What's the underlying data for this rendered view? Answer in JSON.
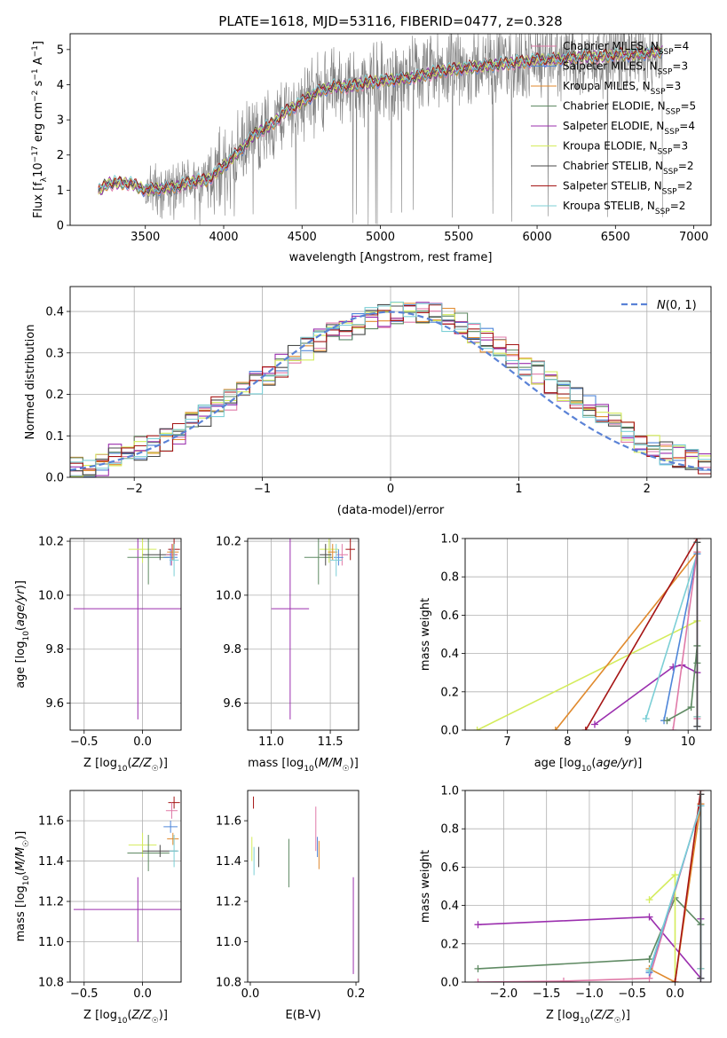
{
  "figure": {
    "title": "PLATE=1618, MJD=53116, FIBERID=0477, z=0.328"
  },
  "colors": {
    "data": "#7f7f7f",
    "chabrier_miles": "#e07aa8",
    "salpeter_miles": "#4f86d9",
    "kroupa_miles": "#e08a2e",
    "chabrier_elodie": "#5f8a63",
    "salpeter_elodie": "#9b2fae",
    "kroupa_elodie": "#d4ec5c",
    "chabrier_stelib": "#4a4a4a",
    "salpeter_stelib": "#a51515",
    "kroupa_stelib": "#7ccfd6",
    "normal": "#5a82d6",
    "grid": "#b0b0b0"
  },
  "chart_data": [
    {
      "id": "spectrum",
      "type": "line",
      "title": "PLATE=1618, MJD=53116, FIBERID=0477, z=0.328",
      "xlabel": "wavelength [Angstrom, rest frame]",
      "ylabel": "Flux [f_λ 10^-17 erg cm^-2 s^-1 A^-1]",
      "xlim": [
        3020,
        7110
      ],
      "ylim": [
        0,
        5.45
      ],
      "xticks": [
        3500,
        4000,
        4500,
        5000,
        5500,
        6000,
        6500,
        7000
      ],
      "yticks": [
        0,
        1,
        2,
        3,
        4,
        5
      ],
      "grid": false,
      "legend_position": "top-right",
      "continuum": [
        [
          3200,
          0.95
        ],
        [
          3260,
          1.2
        ],
        [
          3400,
          1.2
        ],
        [
          3500,
          1.0
        ],
        [
          3600,
          1.05
        ],
        [
          3700,
          1.1
        ],
        [
          3800,
          1.25
        ],
        [
          3900,
          1.3
        ],
        [
          3980,
          1.6
        ],
        [
          4100,
          2.1
        ],
        [
          4200,
          2.6
        ],
        [
          4300,
          2.85
        ],
        [
          4400,
          3.25
        ],
        [
          4500,
          3.5
        ],
        [
          4600,
          3.8
        ],
        [
          4700,
          3.95
        ],
        [
          4800,
          3.95
        ],
        [
          4900,
          4.05
        ],
        [
          5000,
          4.1
        ],
        [
          5100,
          4.15
        ],
        [
          5200,
          4.2
        ],
        [
          5300,
          4.3
        ],
        [
          5400,
          4.4
        ],
        [
          5500,
          4.45
        ],
        [
          5600,
          4.5
        ],
        [
          5700,
          4.55
        ],
        [
          5800,
          4.6
        ],
        [
          5900,
          4.65
        ],
        [
          6000,
          4.7
        ],
        [
          6100,
          4.7
        ],
        [
          6200,
          4.75
        ],
        [
          6300,
          4.8
        ],
        [
          6400,
          4.8
        ],
        [
          6500,
          4.85
        ],
        [
          6600,
          4.85
        ],
        [
          6700,
          4.9
        ],
        [
          6800,
          4.95
        ]
      ],
      "series": [
        {
          "name": "Chabrier MILES, N_SSP=4",
          "color_key": "chabrier_miles"
        },
        {
          "name": "Salpeter MILES, N_SSP=3",
          "color_key": "salpeter_miles"
        },
        {
          "name": "Kroupa MILES, N_SSP=3",
          "color_key": "kroupa_miles"
        },
        {
          "name": "Chabrier ELODIE, N_SSP=5",
          "color_key": "chabrier_elodie"
        },
        {
          "name": "Salpeter ELODIE, N_SSP=4",
          "color_key": "salpeter_elodie"
        },
        {
          "name": "Kroupa ELODIE, N_SSP=3",
          "color_key": "kroupa_elodie"
        },
        {
          "name": "Chabrier STELIB, N_SSP=2",
          "color_key": "chabrier_stelib"
        },
        {
          "name": "Salpeter STELIB, N_SSP=2",
          "color_key": "salpeter_stelib"
        },
        {
          "name": "Kroupa STELIB, N_SSP=2",
          "color_key": "kroupa_stelib"
        }
      ]
    },
    {
      "id": "residuals",
      "type": "line",
      "xlabel": "(data-model)/error",
      "ylabel": "Normed distribution",
      "xlim": [
        -2.5,
        2.5
      ],
      "ylim": [
        0,
        0.46
      ],
      "xticks": [
        -2,
        -1,
        0,
        1,
        2
      ],
      "yticks": [
        0.0,
        0.1,
        0.2,
        0.3,
        0.4
      ],
      "grid": true,
      "legend_position": "top-right",
      "legend": "N(0,1)",
      "bin_edges_start": -2.5,
      "bin_width": 0.1,
      "base_histogram": [
        0.02,
        0.02,
        0.03,
        0.05,
        0.06,
        0.07,
        0.08,
        0.09,
        0.11,
        0.13,
        0.15,
        0.17,
        0.19,
        0.21,
        0.23,
        0.25,
        0.27,
        0.29,
        0.31,
        0.33,
        0.35,
        0.36,
        0.37,
        0.38,
        0.39,
        0.4,
        0.4,
        0.4,
        0.39,
        0.38,
        0.37,
        0.35,
        0.33,
        0.31,
        0.29,
        0.27,
        0.25,
        0.23,
        0.21,
        0.19,
        0.17,
        0.15,
        0.13,
        0.11,
        0.09,
        0.08,
        0.06,
        0.05,
        0.04,
        0.03
      ]
    },
    {
      "id": "age_vs_Z",
      "type": "scatter",
      "xlabel": "Z [log10(Z/Z☉)]",
      "ylabel": "age [log10(age/yr)]",
      "xlim": [
        -0.62,
        0.33
      ],
      "ylim": [
        9.5,
        10.21
      ],
      "xticks": [
        -0.5,
        0.0
      ],
      "yticks": [
        9.6,
        9.8,
        10.0,
        10.2
      ],
      "grid": true,
      "points": [
        {
          "color_key": "salpeter_elodie",
          "x": -0.04,
          "y": 9.95,
          "xerr": 0.55,
          "yerr": 0.41
        },
        {
          "color_key": "kroupa_elodie",
          "x": 0.0,
          "y": 10.17,
          "xerr": 0.12,
          "yerr": 0.05
        },
        {
          "color_key": "chabrier_elodie",
          "x": 0.05,
          "y": 10.14,
          "xerr": 0.18,
          "yerr": 0.1
        },
        {
          "color_key": "chabrier_stelib",
          "x": 0.15,
          "y": 10.15,
          "xerr": 0.15,
          "yerr": 0.02
        },
        {
          "color_key": "salpeter_stelib",
          "x": 0.27,
          "y": 10.17,
          "xerr": 0.05,
          "yerr": 0.04
        },
        {
          "color_key": "chabrier_miles",
          "x": 0.25,
          "y": 10.15,
          "xerr": 0.05,
          "yerr": 0.04
        },
        {
          "color_key": "salpeter_miles",
          "x": 0.24,
          "y": 10.14,
          "xerr": 0.06,
          "yerr": 0.03
        },
        {
          "color_key": "kroupa_miles",
          "x": 0.26,
          "y": 10.16,
          "xerr": 0.05,
          "yerr": 0.03
        },
        {
          "color_key": "kroupa_stelib",
          "x": 0.27,
          "y": 10.13,
          "xerr": 0.04,
          "yerr": 0.06
        }
      ]
    },
    {
      "id": "age_vs_mass",
      "type": "scatter",
      "xlabel": "mass [log10(M/M☉)]",
      "ylabel": "",
      "xlim": [
        10.8,
        11.74
      ],
      "ylim": [
        9.5,
        10.21
      ],
      "xticks": [
        11.0,
        11.5
      ],
      "yticks": [
        9.6,
        9.8,
        10.0,
        10.2
      ],
      "grid": true,
      "points": [
        {
          "color_key": "salpeter_elodie",
          "x": 11.16,
          "y": 9.95,
          "xerr": 0.16,
          "yerr": 0.41
        },
        {
          "color_key": "kroupa_elodie",
          "x": 11.49,
          "y": 10.17,
          "xerr": 0.08,
          "yerr": 0.05
        },
        {
          "color_key": "chabrier_elodie",
          "x": 11.4,
          "y": 10.14,
          "xerr": 0.12,
          "yerr": 0.1
        },
        {
          "color_key": "chabrier_stelib",
          "x": 11.46,
          "y": 10.15,
          "xerr": 0.05,
          "yerr": 0.04
        },
        {
          "color_key": "salpeter_stelib",
          "x": 11.67,
          "y": 10.17,
          "xerr": 0.04,
          "yerr": 0.04
        },
        {
          "color_key": "chabrier_miles",
          "x": 11.6,
          "y": 10.15,
          "xerr": 0.05,
          "yerr": 0.04
        },
        {
          "color_key": "salpeter_miles",
          "x": 11.57,
          "y": 10.14,
          "xerr": 0.04,
          "yerr": 0.03
        },
        {
          "color_key": "kroupa_miles",
          "x": 11.52,
          "y": 10.16,
          "xerr": 0.04,
          "yerr": 0.03
        },
        {
          "color_key": "kroupa_stelib",
          "x": 11.55,
          "y": 10.13,
          "xerr": 0.05,
          "yerr": 0.06
        }
      ]
    },
    {
      "id": "mass_weight_vs_age",
      "type": "line",
      "xlabel": "age [log10(age/yr)]",
      "ylabel": "mass weight",
      "xlim": [
        6.3,
        10.38
      ],
      "ylim": [
        0.0,
        1.0
      ],
      "xticks": [
        7,
        8,
        9,
        10
      ],
      "yticks": [
        0.0,
        0.2,
        0.4,
        0.6,
        0.8,
        1.0
      ],
      "grid": true,
      "series": [
        {
          "color_key": "kroupa_elodie",
          "x": [
            6.5,
            10.15
          ],
          "y": [
            0.0,
            0.57
          ]
        },
        {
          "color_key": "kroupa_miles",
          "x": [
            7.8,
            10.15,
            10.15
          ],
          "y": [
            0.0,
            0.93,
            0.07
          ]
        },
        {
          "color_key": "salpeter_stelib",
          "x": [
            8.3,
            10.15
          ],
          "y": [
            0.0,
            1.0
          ]
        },
        {
          "color_key": "salpeter_elodie",
          "x": [
            8.45,
            9.75,
            9.9,
            10.15
          ],
          "y": [
            0.03,
            0.33,
            0.34,
            0.3
          ]
        },
        {
          "color_key": "kroupa_stelib",
          "x": [
            9.3,
            10.15,
            10.15
          ],
          "y": [
            0.06,
            0.92,
            0.07
          ]
        },
        {
          "color_key": "salpeter_miles",
          "x": [
            9.6,
            10.15,
            10.15
          ],
          "y": [
            0.05,
            0.92,
            0.02
          ]
        },
        {
          "color_key": "chabrier_miles",
          "x": [
            9.75,
            10.15,
            10.15
          ],
          "y": [
            0.0,
            0.93,
            0.06
          ]
        },
        {
          "color_key": "chabrier_elodie",
          "x": [
            9.65,
            10.05,
            10.15,
            10.15
          ],
          "y": [
            0.05,
            0.12,
            0.44,
            0.35
          ]
        },
        {
          "color_key": "chabrier_stelib",
          "x": [
            10.15,
            10.15
          ],
          "y": [
            0.02,
            0.98
          ]
        }
      ]
    },
    {
      "id": "mass_vs_Z",
      "type": "scatter",
      "xlabel": "Z [log10(Z/Z☉)]",
      "ylabel": "mass [log10(M/M☉)]",
      "xlim": [
        -0.62,
        0.33
      ],
      "ylim": [
        10.8,
        11.75
      ],
      "xticks": [
        -0.5,
        0.0
      ],
      "yticks": [
        10.8,
        11.0,
        11.2,
        11.4,
        11.6
      ],
      "grid": true,
      "points": [
        {
          "color_key": "salpeter_elodie",
          "x": -0.04,
          "y": 11.16,
          "xerr": 0.55,
          "yerr": 0.16
        },
        {
          "color_key": "kroupa_elodie",
          "x": 0.0,
          "y": 11.48,
          "xerr": 0.12,
          "yerr": 0.06
        },
        {
          "color_key": "chabrier_elodie",
          "x": 0.05,
          "y": 11.44,
          "xerr": 0.18,
          "yerr": 0.09
        },
        {
          "color_key": "chabrier_stelib",
          "x": 0.15,
          "y": 11.45,
          "xerr": 0.15,
          "yerr": 0.03
        },
        {
          "color_key": "salpeter_stelib",
          "x": 0.27,
          "y": 11.69,
          "xerr": 0.05,
          "yerr": 0.03
        },
        {
          "color_key": "chabrier_miles",
          "x": 0.25,
          "y": 11.65,
          "xerr": 0.05,
          "yerr": 0.04
        },
        {
          "color_key": "salpeter_miles",
          "x": 0.24,
          "y": 11.57,
          "xerr": 0.06,
          "yerr": 0.03
        },
        {
          "color_key": "kroupa_miles",
          "x": 0.26,
          "y": 11.51,
          "xerr": 0.05,
          "yerr": 0.03
        },
        {
          "color_key": "kroupa_stelib",
          "x": 0.27,
          "y": 11.45,
          "xerr": 0.04,
          "yerr": 0.08
        }
      ]
    },
    {
      "id": "mass_vs_ebv",
      "type": "scatter",
      "xlabel": "E(B-V)",
      "ylabel": "",
      "xlim": [
        -0.005,
        0.205
      ],
      "ylim": [
        10.8,
        11.75
      ],
      "xticks": [
        0.0,
        0.2
      ],
      "yticks": [
        10.8,
        11.0,
        11.2,
        11.4,
        11.6
      ],
      "grid": false,
      "points": [
        {
          "color_key": "salpeter_stelib",
          "x": 0.006,
          "y": 11.69,
          "xerr": 0.0,
          "yerr": 0.03
        },
        {
          "color_key": "kroupa_elodie",
          "x": 0.003,
          "y": 11.46,
          "xerr": 0.0,
          "yerr": 0.06
        },
        {
          "color_key": "kroupa_stelib",
          "x": 0.007,
          "y": 11.4,
          "xerr": 0.0,
          "yerr": 0.07
        },
        {
          "color_key": "chabrier_stelib",
          "x": 0.016,
          "y": 11.42,
          "xerr": 0.0,
          "yerr": 0.05
        },
        {
          "color_key": "chabrier_elodie",
          "x": 0.073,
          "y": 11.39,
          "xerr": 0.0,
          "yerr": 0.12
        },
        {
          "color_key": "chabrier_miles",
          "x": 0.124,
          "y": 11.56,
          "xerr": 0.0,
          "yerr": 0.11
        },
        {
          "color_key": "salpeter_miles",
          "x": 0.127,
          "y": 11.47,
          "xerr": 0.0,
          "yerr": 0.05
        },
        {
          "color_key": "kroupa_miles",
          "x": 0.13,
          "y": 11.43,
          "xerr": 0.0,
          "yerr": 0.07
        },
        {
          "color_key": "salpeter_elodie",
          "x": 0.195,
          "y": 11.08,
          "xerr": 0.0,
          "yerr": 0.24
        }
      ]
    },
    {
      "id": "mass_weight_vs_Z",
      "type": "line",
      "xlabel": "Z [log10(Z/Z☉)]",
      "ylabel": "mass weight",
      "xlim": [
        -2.45,
        0.42
      ],
      "ylim": [
        0.0,
        1.0
      ],
      "xticks": [
        -2.0,
        -1.5,
        -1.0,
        -0.5,
        0.0
      ],
      "yticks": [
        0.0,
        0.2,
        0.4,
        0.6,
        0.8,
        1.0
      ],
      "grid": true,
      "series": [
        {
          "color_key": "salpeter_elodie",
          "x": [
            -2.3,
            -0.3,
            0.3,
            0.3
          ],
          "y": [
            0.3,
            0.34,
            0.02,
            0.33
          ]
        },
        {
          "color_key": "chabrier_elodie",
          "x": [
            -2.3,
            -0.3,
            0.0,
            0.3,
            0.3
          ],
          "y": [
            0.07,
            0.12,
            0.44,
            0.3,
            0.07
          ]
        },
        {
          "color_key": "chabrier_miles",
          "x": [
            -2.3,
            -1.3,
            -0.3,
            0.3
          ],
          "y": [
            0.0,
            0.005,
            0.02,
            0.93
          ]
        },
        {
          "color_key": "kroupa_elodie",
          "x": [
            -0.3,
            0.0,
            0.0
          ],
          "y": [
            0.43,
            0.56,
            0.0
          ]
        },
        {
          "color_key": "kroupa_miles",
          "x": [
            -0.3,
            0.0,
            0.3,
            0.3
          ],
          "y": [
            0.07,
            0.0,
            0.93,
            0.07
          ]
        },
        {
          "color_key": "salpeter_stelib",
          "x": [
            0.0,
            0.3
          ],
          "y": [
            0.0,
            1.0
          ]
        },
        {
          "color_key": "salpeter_miles",
          "x": [
            -0.3,
            0.3,
            0.3
          ],
          "y": [
            0.05,
            0.92,
            0.02
          ]
        },
        {
          "color_key": "kroupa_stelib",
          "x": [
            -0.3,
            0.3,
            0.3
          ],
          "y": [
            0.06,
            0.92,
            0.07
          ]
        },
        {
          "color_key": "chabrier_stelib",
          "x": [
            0.3,
            0.3
          ],
          "y": [
            0.02,
            0.98
          ]
        }
      ]
    }
  ]
}
